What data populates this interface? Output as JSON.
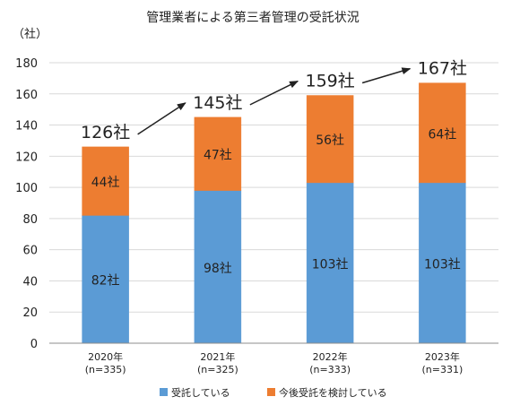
{
  "chart_data": {
    "type": "bar",
    "stacked": true,
    "title": "管理業者による第三者管理の受託状況",
    "unit_label": "（社）",
    "categories": [
      "2020年",
      "2021年",
      "2022年",
      "2023年"
    ],
    "category_sublabels": [
      "(n=335)",
      "(n=325)",
      "(n=333)",
      "(n=331)"
    ],
    "series": [
      {
        "name": "受託している",
        "color": "#5b9bd5",
        "values": [
          82,
          98,
          103,
          103
        ],
        "labels": [
          "82社",
          "98社",
          "103社",
          "103社"
        ]
      },
      {
        "name": "今後受託を検討している",
        "color": "#ed7d31",
        "values": [
          44,
          47,
          56,
          64
        ],
        "labels": [
          "44社",
          "47社",
          "56社",
          "64社"
        ]
      }
    ],
    "totals": [
      126,
      145,
      159,
      167
    ],
    "total_labels": [
      "126社",
      "145社",
      "159社",
      "167社"
    ],
    "ylim": [
      0,
      180
    ],
    "yticks": [
      0,
      20,
      40,
      60,
      80,
      100,
      120,
      140,
      160,
      180
    ],
    "grid": true,
    "legend_position": "bottom",
    "trend_arrows": true
  }
}
